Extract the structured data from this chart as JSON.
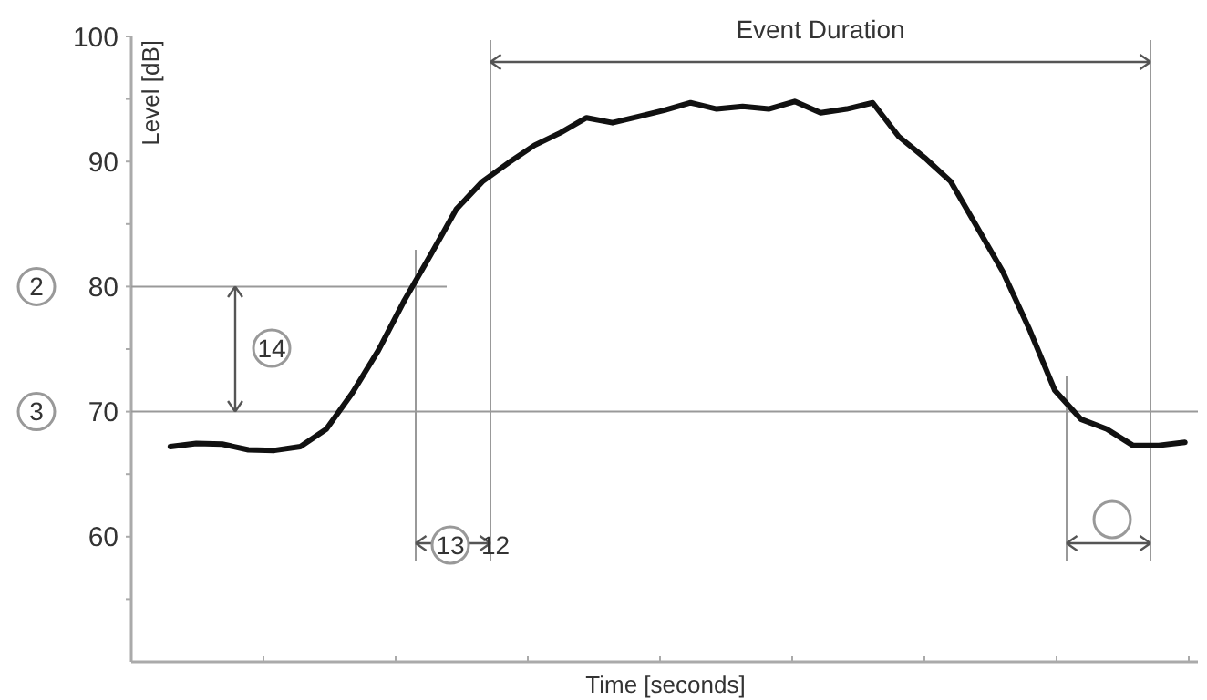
{
  "chart_data": {
    "type": "line",
    "xlabel": "Time [seconds]",
    "ylabel": "Level [dB]",
    "categories": [
      null,
      null,
      null,
      null,
      null,
      null,
      null,
      null,
      null,
      null,
      null,
      null,
      null,
      null,
      null,
      null,
      null,
      null,
      null,
      null,
      null,
      null,
      null,
      null,
      null,
      null,
      null,
      null,
      null,
      null,
      null,
      null,
      null,
      null,
      null,
      null,
      null,
      null,
      null,
      null,
      null
    ],
    "series": [
      {
        "color": "#111111",
        "values": [
          null,
          67.2,
          67.45,
          67.4,
          66.95,
          66.9,
          67.2,
          68.6,
          71.5,
          74.9,
          78.9,
          82.5,
          86.2,
          88.4,
          89.9,
          91.3,
          92.3,
          93.5,
          93.1,
          93.6,
          94.1,
          94.7,
          94.2,
          94.4,
          94.2,
          94.8,
          93.9,
          94.2,
          94.7,
          92.0,
          90.3,
          88.4,
          84.8,
          81.2,
          76.7,
          71.7,
          69.4,
          68.6,
          67.3,
          67.3,
          67.55
        ]
      }
    ],
    "ylim": [
      50,
      100
    ],
    "yticks": [
      {
        "value": 55,
        "label": null
      },
      60,
      {
        "value": 65,
        "label": null
      },
      70,
      {
        "value": 75,
        "label": null
      },
      80,
      {
        "value": 85,
        "label": null
      },
      90,
      {
        "value": 95,
        "label": null
      },
      100
    ],
    "ref_lines": [
      {
        "axis": "y",
        "value": 80,
        "color": "#999999"
      },
      {
        "axis": "y",
        "value": 70,
        "color": "#999999"
      }
    ],
    "annotations": [
      "Event Duration",
      "14",
      "13",
      "12",
      "2",
      "3"
    ],
    "grid": false,
    "legend": false,
    "marker": "none",
    "line_style": "solid"
  }
}
